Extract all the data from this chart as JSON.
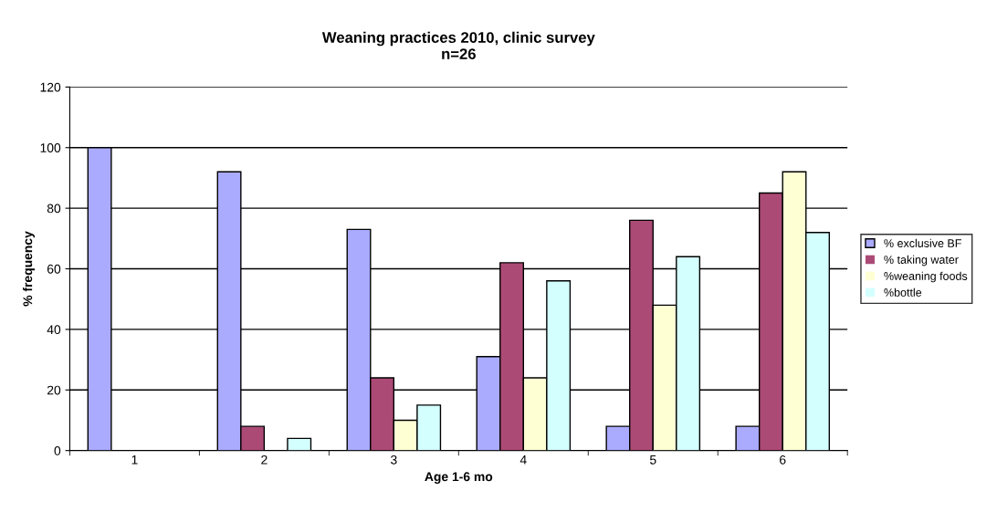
{
  "chart_data": {
    "type": "bar",
    "title": "Weaning practices 2010, clinic survey\nn=26",
    "xlabel": "Age 1-6 mo",
    "ylabel": "% frequency",
    "categories": [
      "1",
      "2",
      "3",
      "4",
      "5",
      "6"
    ],
    "series": [
      {
        "name": "% exclusive BF",
        "color": "#aaaaff",
        "values": [
          100,
          92,
          73,
          31,
          8,
          8
        ]
      },
      {
        "name": "% taking water",
        "color": "#ac4a76",
        "values": [
          0,
          8,
          24,
          62,
          76,
          85
        ]
      },
      {
        "name": "%weaning foods",
        "color": "#ffffd4",
        "values": [
          0,
          0,
          10,
          24,
          48,
          92
        ]
      },
      {
        "name": "%bottle",
        "color": "#d4ffff",
        "values": [
          0,
          4,
          15,
          56,
          64,
          72
        ]
      }
    ],
    "ylim": [
      0,
      120
    ],
    "yticks": [
      0,
      20,
      40,
      60,
      80,
      100,
      120
    ],
    "grid": "y",
    "legend": "right"
  }
}
